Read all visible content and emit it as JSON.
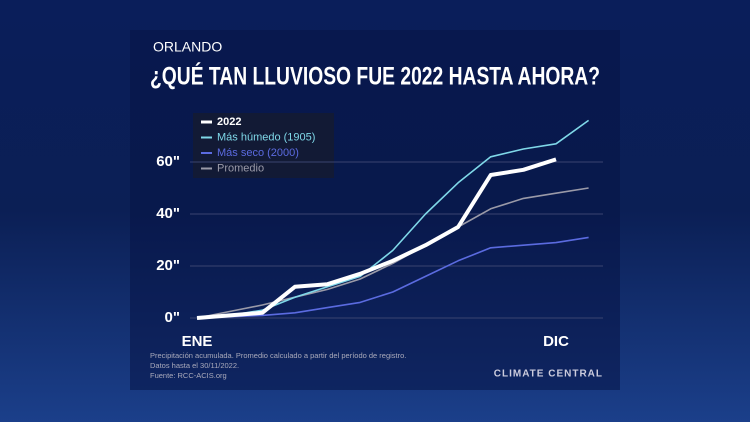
{
  "chart_data": {
    "type": "line",
    "supertitle": "ORLANDO",
    "title": "¿QUÉ TAN LLUVIOSO FUE 2022 HASTA AHORA?",
    "categories": [
      "ENE",
      null,
      null,
      null,
      null,
      null,
      null,
      null,
      null,
      null,
      null,
      "DIC",
      null
    ],
    "series": [
      {
        "name": "2022",
        "color": "#ffffff",
        "values": [
          0,
          1,
          2,
          12,
          13,
          17,
          22,
          28,
          35,
          55,
          57,
          61,
          null
        ]
      },
      {
        "name": "Más húmedo (1905)",
        "color": "#7fd8e8",
        "values": [
          0,
          1,
          3,
          8,
          12,
          16,
          26,
          40,
          52,
          62,
          65,
          67,
          76
        ]
      },
      {
        "name": "Más seco (2000)",
        "color": "#5b6be0",
        "values": [
          0,
          0.5,
          1,
          2,
          4,
          6,
          10,
          16,
          22,
          27,
          28,
          29,
          31
        ]
      },
      {
        "name": "Promedio",
        "color": "#9a9aa8",
        "values": [
          0,
          2.5,
          5,
          8,
          11,
          15,
          21,
          28,
          35,
          42,
          46,
          48,
          50
        ]
      }
    ],
    "ylim": [
      0,
      80
    ],
    "yticks": [
      {
        "value": 0,
        "label": "0\""
      },
      {
        "value": 20,
        "label": "20\""
      },
      {
        "value": 40,
        "label": "40\""
      },
      {
        "value": 60,
        "label": "60\""
      }
    ],
    "grid": true,
    "legend": "top-left",
    "notes": [
      "Precipitación acumulada. Promedio calculado a partir del período de registro.",
      "Datos hasta el 30/11/2022.",
      "Fuente: RCC-ACIS.org"
    ],
    "brand": "CLIMATE CENTRAL"
  }
}
